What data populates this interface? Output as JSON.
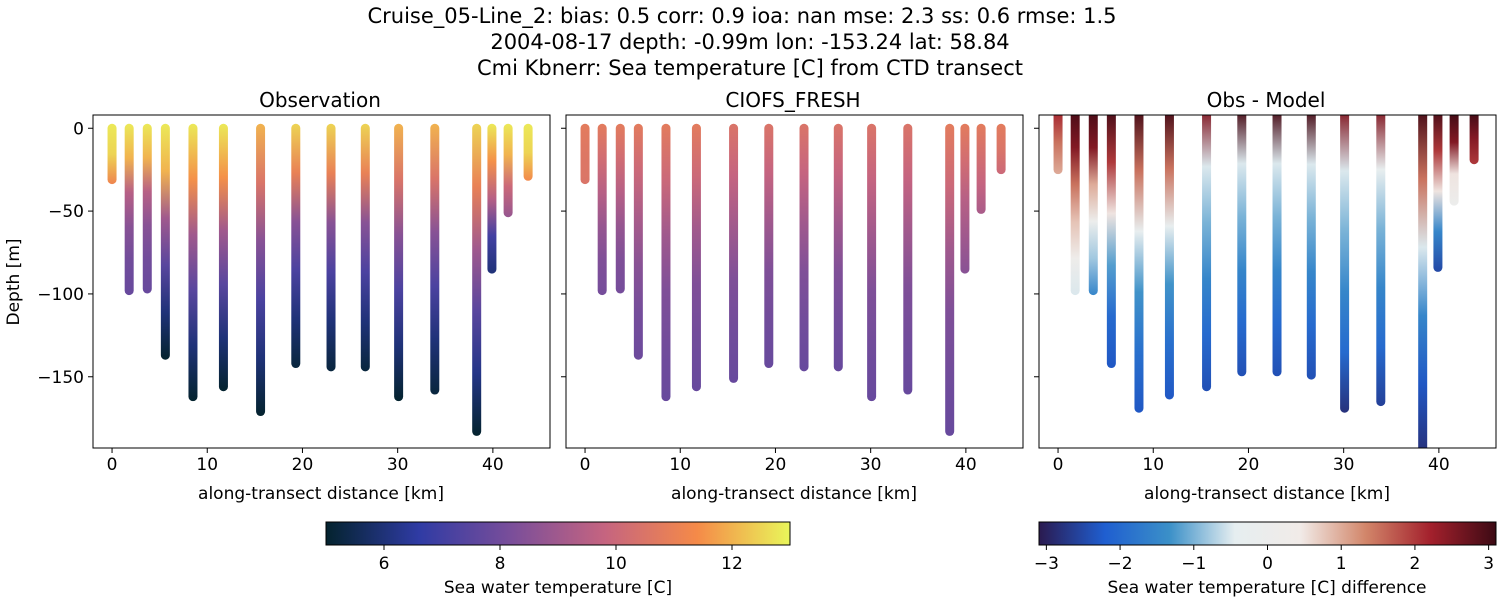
{
  "title_lines": [
    "Cruise_05-Line_2: bias: 0.5  corr: 0.9  ioa: nan  mse: 2.3  ss: 0.6  rmse: 1.5",
    "2004-08-17 depth: -0.99m lon: -153.24 lat: 58.84",
    "Cmi Kbnerr: Sea temperature [C] from CTD transect"
  ],
  "colors": {
    "thermal": [
      "#04232e",
      "#2f3ba4",
      "#7a4e9a",
      "#c56480",
      "#f58a48",
      "#e9f65a"
    ],
    "diff": [
      "#2b1a4f",
      "#1f5ed0",
      "#3b90c8",
      "#e6eef0",
      "#f1ebe8",
      "#d2866a",
      "#a3202c",
      "#3c0a14"
    ]
  },
  "chart_data": [
    {
      "type": "scatter",
      "title": "Observation",
      "xlabel": "along-transect distance [km]",
      "ylabel": "Depth [m]",
      "xlim": [
        -2,
        46
      ],
      "ylim": [
        -193,
        8
      ],
      "xticks": [
        0,
        10,
        20,
        30,
        40
      ],
      "yticks": [
        0,
        -50,
        -100,
        -150
      ],
      "colormap": "thermal",
      "clim": [
        5,
        13
      ],
      "casts": [
        {
          "x": 0.0,
          "bottom": -31,
          "values_top_to_bottom": [
            12.8,
            12.5,
            11.2
          ]
        },
        {
          "x": 1.8,
          "bottom": -98,
          "values_top_to_bottom": [
            12.8,
            12.0,
            9.5,
            8.5,
            8.0,
            7.8
          ]
        },
        {
          "x": 3.7,
          "bottom": -97,
          "values_top_to_bottom": [
            12.8,
            12.0,
            9.5,
            8.5,
            8.0,
            7.8
          ]
        },
        {
          "x": 5.6,
          "bottom": -137,
          "values_top_to_bottom": [
            12.8,
            12.0,
            9.0,
            7.5,
            6.0,
            5.0
          ]
        },
        {
          "x": 8.5,
          "bottom": -162,
          "values_top_to_bottom": [
            12.8,
            11.5,
            9.0,
            7.5,
            6.0,
            5.0
          ]
        },
        {
          "x": 11.7,
          "bottom": -156,
          "values_top_to_bottom": [
            12.8,
            11.5,
            9.0,
            7.5,
            6.0,
            5.0
          ]
        },
        {
          "x": 15.6,
          "bottom": -171,
          "values_top_to_bottom": [
            12.0,
            10.5,
            8.5,
            7.2,
            6.0,
            5.0
          ]
        },
        {
          "x": 19.3,
          "bottom": -142,
          "values_top_to_bottom": [
            12.5,
            11.0,
            8.5,
            7.2,
            6.0,
            5.2
          ]
        },
        {
          "x": 23.0,
          "bottom": -144,
          "values_top_to_bottom": [
            12.5,
            11.0,
            8.5,
            7.2,
            6.0,
            5.2
          ]
        },
        {
          "x": 26.6,
          "bottom": -144,
          "values_top_to_bottom": [
            12.5,
            11.0,
            8.5,
            7.2,
            6.0,
            5.2
          ]
        },
        {
          "x": 30.1,
          "bottom": -162,
          "values_top_to_bottom": [
            12.0,
            10.5,
            8.5,
            7.2,
            6.0,
            5.0
          ]
        },
        {
          "x": 33.9,
          "bottom": -158,
          "values_top_to_bottom": [
            12.0,
            10.5,
            8.5,
            7.2,
            6.0,
            5.2
          ]
        },
        {
          "x": 38.3,
          "bottom": -183,
          "values_top_to_bottom": [
            12.5,
            11.0,
            9.0,
            7.5,
            6.2,
            5.0
          ]
        },
        {
          "x": 39.9,
          "bottom": -85,
          "values_top_to_bottom": [
            12.8,
            11.5,
            9.5,
            7.0,
            6.0
          ]
        },
        {
          "x": 41.6,
          "bottom": -51,
          "values_top_to_bottom": [
            12.8,
            12.0,
            10.0,
            8.8
          ]
        },
        {
          "x": 43.7,
          "bottom": -29,
          "values_top_to_bottom": [
            12.8,
            12.5,
            11.3
          ]
        }
      ]
    },
    {
      "type": "scatter",
      "title": "CIOFS_FRESH",
      "xlabel": "along-transect distance [km]",
      "xlim": [
        -2,
        46
      ],
      "ylim": [
        -193,
        8
      ],
      "xticks": [
        0,
        10,
        20,
        30,
        40
      ],
      "yticks": [
        0,
        -50,
        -100,
        -150
      ],
      "colormap": "thermal",
      "clim": [
        5,
        13
      ],
      "casts": [
        {
          "x": 0.0,
          "bottom": -31,
          "values_top_to_bottom": [
            10.8,
            10.6,
            10.5
          ]
        },
        {
          "x": 1.8,
          "bottom": -98,
          "values_top_to_bottom": [
            10.8,
            10.2,
            9.5,
            8.8,
            8.3,
            8.1
          ]
        },
        {
          "x": 3.7,
          "bottom": -97,
          "values_top_to_bottom": [
            10.8,
            10.2,
            9.5,
            8.8,
            8.3,
            8.1
          ]
        },
        {
          "x": 5.6,
          "bottom": -137,
          "values_top_to_bottom": [
            10.8,
            10.0,
            9.2,
            8.5,
            8.1,
            7.9
          ]
        },
        {
          "x": 8.5,
          "bottom": -162,
          "values_top_to_bottom": [
            10.8,
            10.0,
            9.0,
            8.3,
            8.0,
            7.8
          ]
        },
        {
          "x": 11.7,
          "bottom": -156,
          "values_top_to_bottom": [
            10.8,
            10.0,
            9.0,
            8.3,
            8.0,
            7.8
          ]
        },
        {
          "x": 15.6,
          "bottom": -151,
          "values_top_to_bottom": [
            10.5,
            9.8,
            9.0,
            8.3,
            8.0,
            7.8
          ]
        },
        {
          "x": 19.3,
          "bottom": -142,
          "values_top_to_bottom": [
            10.5,
            9.8,
            9.0,
            8.3,
            8.0,
            7.8
          ]
        },
        {
          "x": 23.0,
          "bottom": -144,
          "values_top_to_bottom": [
            10.5,
            9.8,
            9.0,
            8.3,
            8.0,
            7.8
          ]
        },
        {
          "x": 26.6,
          "bottom": -144,
          "values_top_to_bottom": [
            10.5,
            9.8,
            9.0,
            8.3,
            8.0,
            7.8
          ]
        },
        {
          "x": 30.1,
          "bottom": -162,
          "values_top_to_bottom": [
            10.5,
            9.8,
            9.0,
            8.3,
            8.0,
            7.8
          ]
        },
        {
          "x": 33.9,
          "bottom": -158,
          "values_top_to_bottom": [
            10.5,
            9.8,
            9.0,
            8.3,
            8.0,
            7.8
          ]
        },
        {
          "x": 38.3,
          "bottom": -183,
          "values_top_to_bottom": [
            10.8,
            10.0,
            9.0,
            8.3,
            8.0,
            7.8
          ]
        },
        {
          "x": 39.9,
          "bottom": -85,
          "values_top_to_bottom": [
            10.8,
            10.2,
            9.5,
            9.0,
            8.5
          ]
        },
        {
          "x": 41.6,
          "bottom": -49,
          "values_top_to_bottom": [
            10.8,
            10.3,
            9.8,
            9.2
          ]
        },
        {
          "x": 43.7,
          "bottom": -25,
          "values_top_to_bottom": [
            10.8,
            10.5,
            10.0
          ]
        }
      ]
    },
    {
      "type": "scatter",
      "title": "Obs - Model",
      "xlabel": "along-transect distance [km]",
      "xlim": [
        -2,
        46
      ],
      "ylim": [
        -193,
        8
      ],
      "xticks": [
        0,
        10,
        20,
        30,
        40
      ],
      "yticks": [
        0,
        -50,
        -100,
        -150
      ],
      "colormap": "diff",
      "clim": [
        -3.1,
        3.1
      ],
      "casts": [
        {
          "x": 0.0,
          "top": 8,
          "bottom": -25,
          "values_top_to_bottom": [
            2.2,
            1.5,
            1.0
          ]
        },
        {
          "x": 1.8,
          "top": 8,
          "bottom": -98,
          "values_top_to_bottom": [
            3.0,
            2.5,
            1.5,
            0.8,
            0.2,
            -0.5
          ]
        },
        {
          "x": 3.7,
          "top": 8,
          "bottom": -98,
          "values_top_to_bottom": [
            3.0,
            2.5,
            1.0,
            0.0,
            -0.8,
            -1.5
          ]
        },
        {
          "x": 5.6,
          "top": 8,
          "bottom": -142,
          "values_top_to_bottom": [
            3.0,
            2.0,
            0.5,
            -1.2,
            -2.0,
            -2.3
          ]
        },
        {
          "x": 8.5,
          "top": 8,
          "bottom": -169,
          "values_top_to_bottom": [
            3.0,
            1.5,
            -0.3,
            -1.3,
            -1.9,
            -2.3
          ]
        },
        {
          "x": 11.7,
          "top": 8,
          "bottom": -161,
          "values_top_to_bottom": [
            3.0,
            1.5,
            -0.3,
            -1.3,
            -1.9,
            -2.3
          ]
        },
        {
          "x": 15.6,
          "top": 8,
          "bottom": -156,
          "values_top_to_bottom": [
            2.5,
            -0.5,
            -1.0,
            -1.5,
            -2.0,
            -2.4
          ]
        },
        {
          "x": 19.3,
          "top": 8,
          "bottom": -147,
          "values_top_to_bottom": [
            3.0,
            -0.5,
            -1.0,
            -1.5,
            -2.0,
            -2.4
          ]
        },
        {
          "x": 23.0,
          "top": 8,
          "bottom": -147,
          "values_top_to_bottom": [
            3.0,
            -0.5,
            -1.0,
            -1.5,
            -2.0,
            -2.4
          ]
        },
        {
          "x": 26.6,
          "top": 8,
          "bottom": -149,
          "values_top_to_bottom": [
            3.0,
            -0.5,
            -1.0,
            -1.5,
            -2.0,
            -2.4
          ]
        },
        {
          "x": 30.1,
          "top": 8,
          "bottom": -169,
          "values_top_to_bottom": [
            2.5,
            -0.5,
            -1.0,
            -1.5,
            -2.0,
            -2.8
          ]
        },
        {
          "x": 33.9,
          "top": 8,
          "bottom": -165,
          "values_top_to_bottom": [
            2.5,
            -0.3,
            -1.0,
            -1.5,
            -2.0,
            -2.6
          ]
        },
        {
          "x": 38.3,
          "top": 8,
          "bottom": -193,
          "values_top_to_bottom": [
            3.0,
            1.5,
            -0.5,
            -1.5,
            -2.3,
            -2.8
          ]
        },
        {
          "x": 39.9,
          "top": 8,
          "bottom": -84,
          "values_top_to_bottom": [
            3.0,
            2.0,
            0.5,
            -1.5,
            -2.5
          ]
        },
        {
          "x": 41.6,
          "top": 8,
          "bottom": -44,
          "values_top_to_bottom": [
            3.1,
            2.5,
            0.5,
            0.0
          ]
        },
        {
          "x": 43.7,
          "top": 8,
          "bottom": -19,
          "values_top_to_bottom": [
            3.1,
            2.5,
            2.0
          ]
        }
      ]
    }
  ],
  "colorbars": [
    {
      "label": "Sea water temperature [C]",
      "colormap": "thermal",
      "range": [
        5,
        13
      ],
      "ticks": [
        6,
        8,
        10,
        12
      ]
    },
    {
      "label": "Sea water temperature [C] difference",
      "colormap": "diff",
      "range": [
        -3.1,
        3.1
      ],
      "ticks": [
        -3,
        -2,
        -1,
        0,
        1,
        2,
        3
      ]
    }
  ]
}
